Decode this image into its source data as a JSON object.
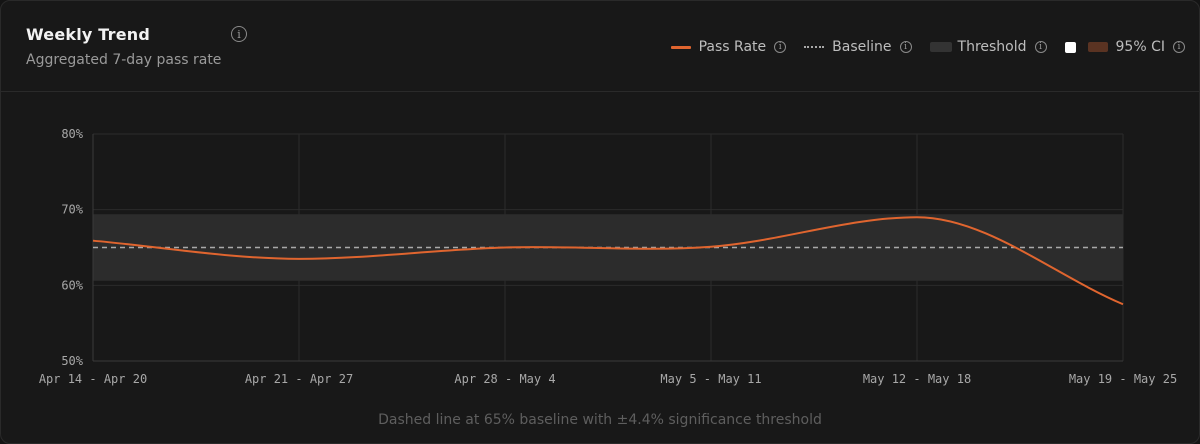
{
  "card": {
    "title": "Weekly Trend",
    "subtitle": "Aggregated 7-day pass rate",
    "info_icon": "info-icon",
    "footnote": "Dashed line at 65% baseline with ±4.4% significance threshold"
  },
  "legend": {
    "pass_rate": "Pass Rate",
    "baseline": "Baseline",
    "threshold": "Threshold",
    "ci": "95% CI",
    "ci_checked": false
  },
  "colors": {
    "line": "#e0652f",
    "baseline": "#a9a9a9",
    "threshold_band": "#2c2c2c",
    "grid": "#2b2b2b"
  },
  "chart_data": {
    "type": "line",
    "categories": [
      "Apr 14 - Apr 20",
      "Apr 21 - Apr 27",
      "Apr 28 - May 4",
      "May 5 - May 11",
      "May 12 - May 18",
      "May 19 - May 25"
    ],
    "series": [
      {
        "name": "Pass Rate",
        "values": [
          65.9,
          63.5,
          65.0,
          65.1,
          69.0,
          57.5
        ]
      }
    ],
    "baseline": 65,
    "threshold": 4.4,
    "ylim": [
      50,
      80
    ],
    "yticks": [
      50,
      60,
      70,
      80
    ],
    "ytick_labels": [
      "50%",
      "60%",
      "70%",
      "80%"
    ],
    "grid": true
  }
}
